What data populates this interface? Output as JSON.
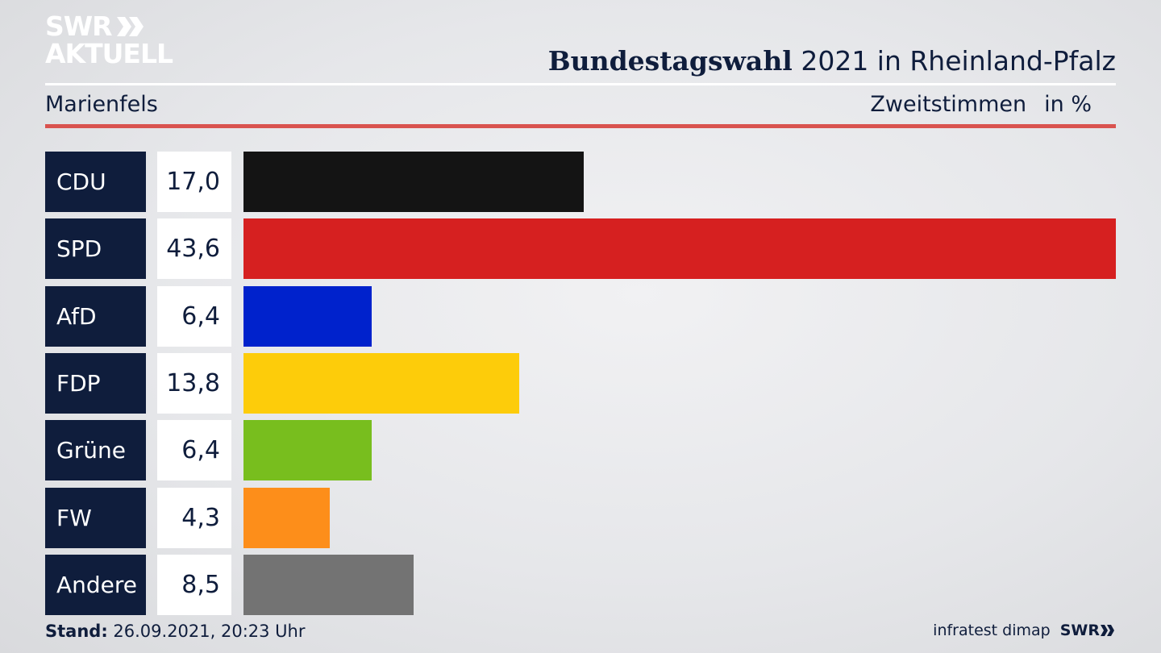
{
  "header": {
    "logo_line1": "SWR",
    "logo_line2": "AKTUELL",
    "title_bold": "Bundestagswahl",
    "title_rest": " 2021 in Rheinland-Pfalz",
    "subtitle": "Marienfels",
    "measure_label": "Zweitstimmen",
    "unit_label": "in %"
  },
  "colors": {
    "navy": "#0f1d3c",
    "accent_rule": "#d9534f"
  },
  "chart_data": {
    "type": "bar",
    "orientation": "horizontal",
    "categories": [
      "CDU",
      "SPD",
      "AfD",
      "FDP",
      "Grüne",
      "FW",
      "Andere"
    ],
    "values": [
      17.0,
      43.6,
      6.4,
      13.8,
      6.4,
      4.3,
      8.5
    ],
    "value_labels": [
      "17,0",
      "43,6",
      "6,4",
      "13,8",
      "6,4",
      "4,3",
      "8,5"
    ],
    "colors": [
      "#141414",
      "#d62020",
      "#0022cc",
      "#fdcc0a",
      "#78be1e",
      "#fd8e1a",
      "#737373"
    ],
    "xlim": [
      0,
      43.6
    ]
  },
  "footer": {
    "stand_label": "Stand:",
    "stand_value": " 26.09.2021, 20:23 Uhr",
    "source": "infratest dimap",
    "brand": "SWR"
  }
}
